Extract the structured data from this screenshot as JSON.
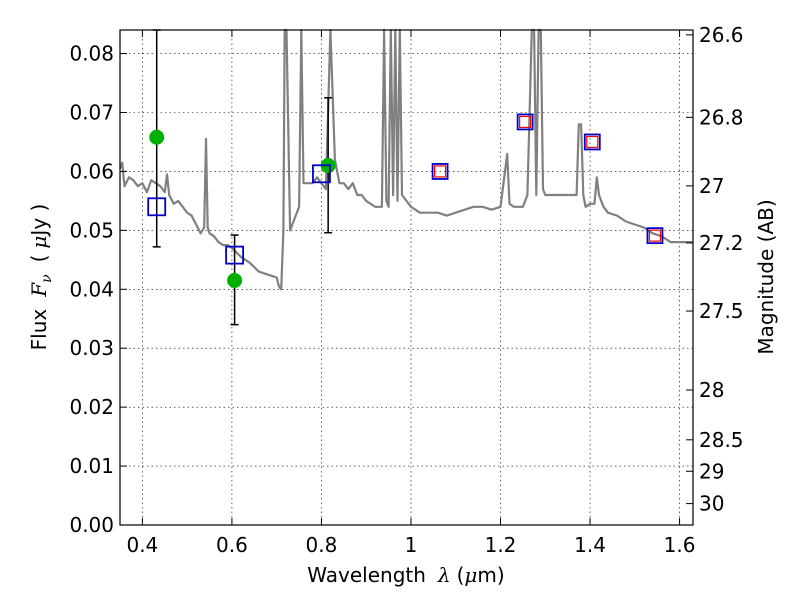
{
  "chart_data": {
    "type": "scatter",
    "xlabel": "Wavelength",
    "xlabel_symbol": "λ",
    "xlabel_unit_open": "(",
    "xlabel_unit_mu": "μ",
    "xlabel_unit_rest": "m)",
    "ylabel": "Flux",
    "ylabel_symbol": "F",
    "ylabel_symbol_sub": "ν",
    "ylabel_unit_open": "(",
    "ylabel_unit_mu": "μ",
    "ylabel_unit_rest": "Jy )",
    "y2label": "Magnitude (AB)",
    "xlim": [
      0.35,
      1.63
    ],
    "ylim": [
      0.0,
      0.084
    ],
    "grid": true,
    "x_ticks": [
      0.4,
      0.6,
      0.8,
      1.0,
      1.2,
      1.4,
      1.6
    ],
    "x_tick_labels": [
      "0.4",
      "0.6",
      "0.8",
      "1",
      "1.2",
      "1.4",
      "1.6"
    ],
    "y_ticks": [
      0.0,
      0.01,
      0.02,
      0.03,
      0.04,
      0.05,
      0.06,
      0.07,
      0.08
    ],
    "y_tick_labels": [
      "0.00",
      "0.01",
      "0.02",
      "0.03",
      "0.04",
      "0.05",
      "0.06",
      "0.07",
      "0.08"
    ],
    "y2_ticks": [
      26.6,
      26.8,
      27.0,
      27.2,
      27.5,
      28.0,
      28.5,
      29.0,
      30.0
    ],
    "y2_tick_labels": [
      "26.6",
      "26.8",
      "27",
      "27.2",
      "27.5",
      "28",
      "28.5",
      "29",
      "30"
    ],
    "model_spectrum": {
      "color": "#808080",
      "x": [
        0.35,
        0.355,
        0.36,
        0.37,
        0.38,
        0.39,
        0.4,
        0.41,
        0.42,
        0.43,
        0.44,
        0.45,
        0.455,
        0.46,
        0.47,
        0.48,
        0.49,
        0.5,
        0.51,
        0.52,
        0.53,
        0.538,
        0.542,
        0.546,
        0.55,
        0.56,
        0.57,
        0.58,
        0.59,
        0.6,
        0.62,
        0.64,
        0.66,
        0.68,
        0.7,
        0.705,
        0.71,
        0.715,
        0.718,
        0.722,
        0.73,
        0.74,
        0.75,
        0.755,
        0.76,
        0.77,
        0.78,
        0.79,
        0.8,
        0.81,
        0.82,
        0.83,
        0.84,
        0.85,
        0.86,
        0.87,
        0.88,
        0.89,
        0.9,
        0.92,
        0.935,
        0.94,
        0.945,
        0.95,
        0.955,
        0.96,
        0.965,
        0.97,
        0.975,
        0.98,
        1.0,
        1.02,
        1.04,
        1.06,
        1.08,
        1.1,
        1.12,
        1.14,
        1.16,
        1.18,
        1.2,
        1.21,
        1.215,
        1.22,
        1.23,
        1.24,
        1.25,
        1.26,
        1.27,
        1.275,
        1.28,
        1.285,
        1.29,
        1.295,
        1.3,
        1.31,
        1.32,
        1.34,
        1.36,
        1.37,
        1.375,
        1.38,
        1.385,
        1.39,
        1.4,
        1.41,
        1.415,
        1.42,
        1.43,
        1.44,
        1.46,
        1.48,
        1.5,
        1.52,
        1.54,
        1.56,
        1.58,
        1.6,
        1.63
      ],
      "y": [
        0.0605,
        0.0615,
        0.0575,
        0.059,
        0.0585,
        0.0575,
        0.058,
        0.0565,
        0.0585,
        0.058,
        0.0575,
        0.0565,
        0.0595,
        0.056,
        0.0545,
        0.055,
        0.054,
        0.053,
        0.0525,
        0.051,
        0.0495,
        0.0505,
        0.0655,
        0.0505,
        0.0495,
        0.049,
        0.048,
        0.0475,
        0.0475,
        0.047,
        0.0455,
        0.0445,
        0.043,
        0.0425,
        0.042,
        0.0405,
        0.04,
        0.05,
        0.087,
        0.087,
        0.05,
        0.052,
        0.054,
        0.085,
        0.058,
        0.058,
        0.058,
        0.059,
        0.058,
        0.057,
        0.084,
        0.062,
        0.058,
        0.058,
        0.057,
        0.058,
        0.056,
        0.056,
        0.055,
        0.054,
        0.054,
        0.086,
        0.055,
        0.054,
        0.086,
        0.056,
        0.087,
        0.055,
        0.087,
        0.056,
        0.054,
        0.053,
        0.053,
        0.053,
        0.0525,
        0.053,
        0.0535,
        0.054,
        0.054,
        0.0535,
        0.054,
        0.06,
        0.063,
        0.0545,
        0.054,
        0.054,
        0.054,
        0.056,
        0.087,
        0.087,
        0.056,
        0.087,
        0.087,
        0.057,
        0.056,
        0.056,
        0.056,
        0.056,
        0.056,
        0.056,
        0.068,
        0.068,
        0.056,
        0.054,
        0.0545,
        0.0545,
        0.059,
        0.056,
        0.054,
        0.053,
        0.0525,
        0.0515,
        0.051,
        0.0505,
        0.0495,
        0.049,
        0.048,
        0.048,
        0.048
      ]
    },
    "observed_points": {
      "color": "#00b000",
      "x": [
        0.432,
        0.606,
        0.815
      ],
      "y": [
        0.0658,
        0.0415,
        0.061
      ],
      "error_bars": [
        {
          "x": 0.432,
          "low": 0.0472,
          "high": 0.084
        },
        {
          "x": 0.606,
          "low": 0.034,
          "high": 0.0492
        },
        {
          "x": 0.815,
          "low": 0.0496,
          "high": 0.0725
        }
      ]
    },
    "model_photometry": {
      "color": "#0000cc",
      "x": [
        0.432,
        0.606,
        0.8,
        1.065,
        1.255,
        1.405,
        1.545
      ],
      "y": [
        0.054,
        0.0458,
        0.0596,
        0.06,
        0.0684,
        0.065,
        0.0491
      ]
    },
    "model_photometry_inner": {
      "color": "#ff0000",
      "x": [
        1.065,
        1.255,
        1.405,
        1.545
      ],
      "y": [
        0.06,
        0.0684,
        0.065,
        0.0491
      ]
    }
  }
}
